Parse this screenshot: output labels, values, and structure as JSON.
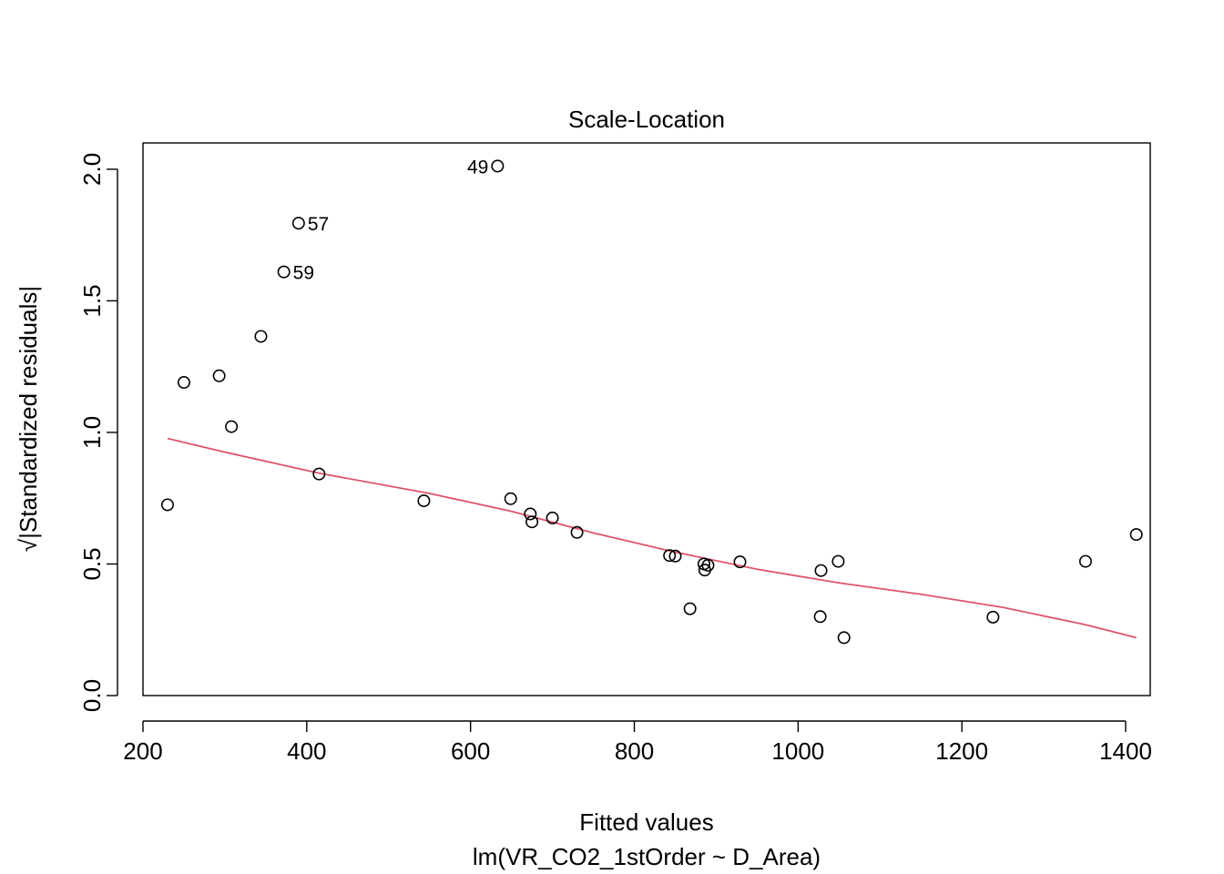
{
  "chart_data": {
    "type": "scatter",
    "title": "Scale-Location",
    "xlabel": "Fitted values",
    "subtitle": "lm(VR_CO2_1stOrder ~ D_Area)",
    "ylabel": "√|Standardized residuals|",
    "xlim": [
      200,
      1430
    ],
    "ylim": [
      0,
      2.1
    ],
    "x_ticks": [
      200,
      400,
      600,
      800,
      1000,
      1200,
      1400
    ],
    "y_ticks": [
      0.0,
      0.5,
      1.0,
      1.5,
      2.0
    ],
    "y_tick_labels": [
      "0.0",
      "0.5",
      "1.0",
      "1.5",
      "2.0"
    ],
    "grid": false,
    "points": [
      {
        "x": 230,
        "y": 0.725
      },
      {
        "x": 250,
        "y": 1.19
      },
      {
        "x": 293,
        "y": 1.215
      },
      {
        "x": 308,
        "y": 1.022
      },
      {
        "x": 344,
        "y": 1.365
      },
      {
        "x": 372,
        "y": 1.61,
        "label": "59"
      },
      {
        "x": 390,
        "y": 1.795,
        "label": "57"
      },
      {
        "x": 415,
        "y": 0.842
      },
      {
        "x": 543,
        "y": 0.74
      },
      {
        "x": 633,
        "y": 2.012,
        "label": "49"
      },
      {
        "x": 649,
        "y": 0.748
      },
      {
        "x": 673,
        "y": 0.69
      },
      {
        "x": 675,
        "y": 0.66
      },
      {
        "x": 700,
        "y": 0.675
      },
      {
        "x": 730,
        "y": 0.62
      },
      {
        "x": 843,
        "y": 0.532
      },
      {
        "x": 850,
        "y": 0.53
      },
      {
        "x": 868,
        "y": 0.33
      },
      {
        "x": 885,
        "y": 0.5
      },
      {
        "x": 886,
        "y": 0.477
      },
      {
        "x": 890,
        "y": 0.495
      },
      {
        "x": 929,
        "y": 0.508
      },
      {
        "x": 1027,
        "y": 0.3
      },
      {
        "x": 1028,
        "y": 0.475
      },
      {
        "x": 1049,
        "y": 0.51
      },
      {
        "x": 1056,
        "y": 0.22
      },
      {
        "x": 1238,
        "y": 0.298
      },
      {
        "x": 1351,
        "y": 0.51
      },
      {
        "x": 1413,
        "y": 0.612
      }
    ],
    "smooth_line": {
      "color": "#DF536B",
      "x": [
        230,
        300,
        415,
        550,
        650,
        750,
        850,
        950,
        1050,
        1150,
        1250,
        1350,
        1413
      ],
      "y": [
        0.977,
        0.925,
        0.845,
        0.768,
        0.7,
        0.618,
        0.545,
        0.48,
        0.428,
        0.385,
        0.335,
        0.27,
        0.22
      ]
    },
    "colors": {
      "points": "#000000",
      "smooth": "#DF536B",
      "frame": "#000000"
    }
  }
}
